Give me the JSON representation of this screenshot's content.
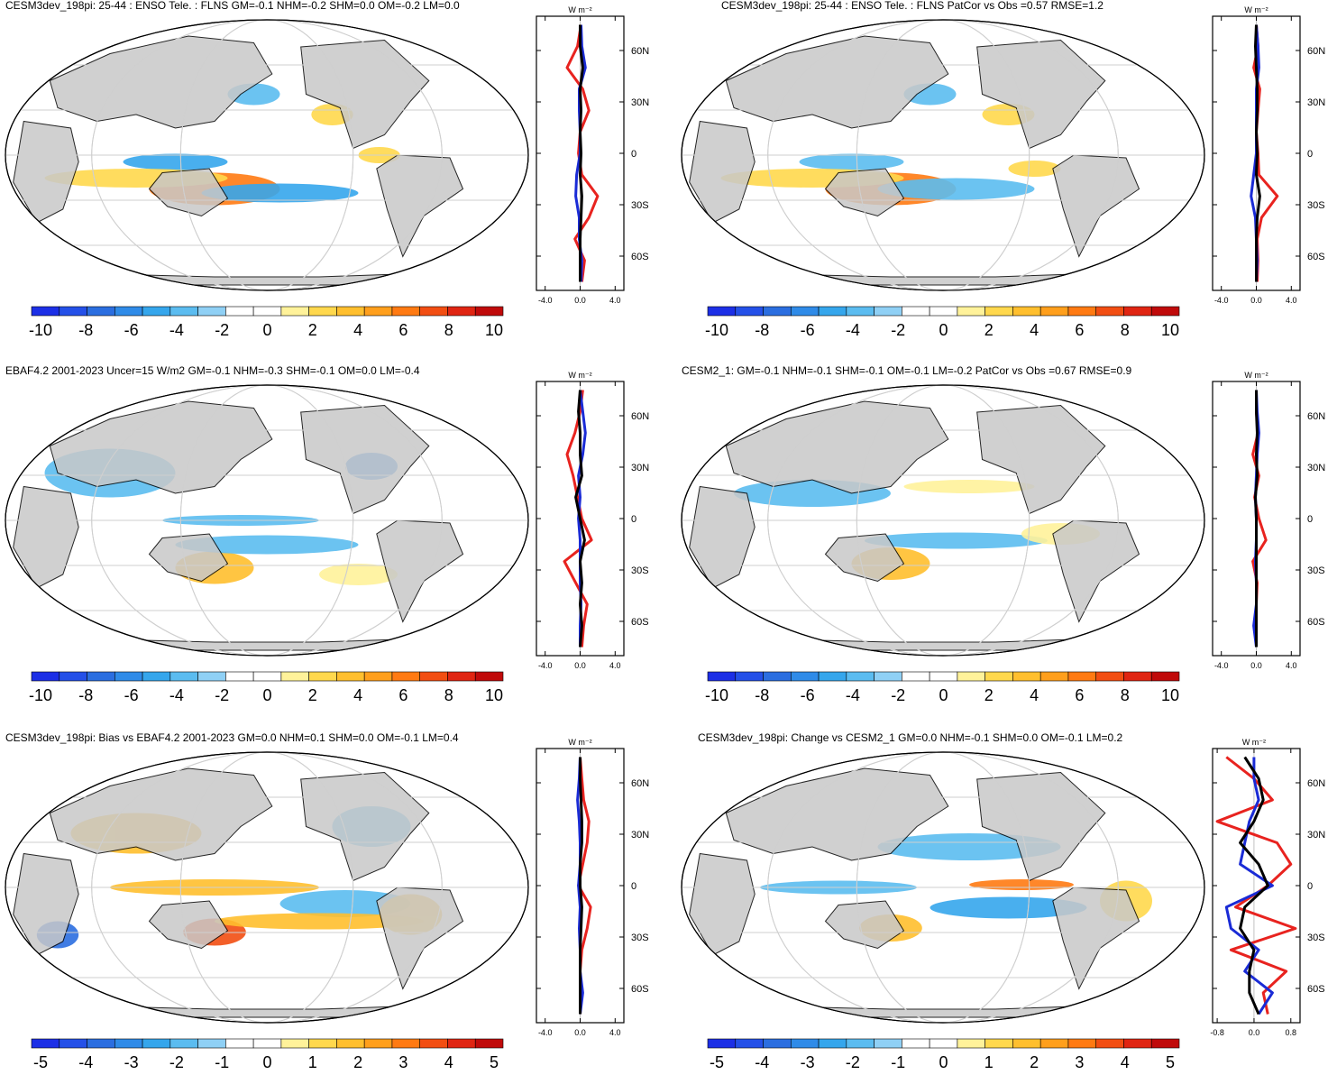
{
  "chart_data": [
    {
      "type": "heatmap",
      "title": "CESM3dev_198pi: 25-44 : ENSO Tele. : FLNS GM=-0.1 NHM=-0.2 SHM=0.0 OM=-0.2 LM=0.0",
      "colorbar_ticks": [
        "-10",
        "-8",
        "-6",
        "-4",
        "-2",
        "0",
        "2",
        "4",
        "6",
        "8",
        "10"
      ],
      "zonal_mean": {
        "units": "W m⁻²",
        "x_ticks": [
          "-4.0",
          "0.0",
          "4.0"
        ],
        "x_range": [
          -5,
          5
        ],
        "y_ticks": [
          "60N",
          "30N",
          "0",
          "30S",
          "60S"
        ],
        "series": [
          {
            "color": "#e8231f",
            "values": [
              0.1,
              -0.3,
              -1.5,
              0.3,
              1.0,
              0.0,
              -0.2,
              0.2,
              2.0,
              1.0,
              -0.6,
              0.5,
              0.2
            ]
          },
          {
            "color": "#1a2bd6",
            "values": [
              0.1,
              0.2,
              0.6,
              -0.1,
              -0.1,
              0.0,
              0.0,
              -0.4,
              -0.5,
              -0.1,
              -0.1,
              0.2,
              0.1
            ]
          },
          {
            "color": "#000000",
            "values": [
              0.0,
              0.0,
              0.3,
              0.0,
              0.1,
              0.0,
              0.1,
              0.0,
              0.2,
              0.1,
              0.0,
              0.0,
              0.0
            ]
          }
        ]
      }
    },
    {
      "type": "heatmap",
      "title": "CESM3dev_198pi: 25-44 : ENSO Tele. : FLNS PatCor vs Obs =0.57 RMSE=1.2",
      "colorbar_ticks": [
        "-10",
        "-8",
        "-6",
        "-4",
        "-2",
        "0",
        "2",
        "4",
        "6",
        "8",
        "10"
      ],
      "zonal_mean": {
        "units": "W m⁻²",
        "x_ticks": [
          "-4.0",
          "0.0",
          "4.0"
        ],
        "x_range": [
          -5,
          5
        ],
        "y_ticks": [
          "60N",
          "30N",
          "0",
          "30S",
          "60S"
        ],
        "series": [
          {
            "color": "#e8231f",
            "values": [
              0.0,
              0.2,
              -0.3,
              0.4,
              0.2,
              0.0,
              0.2,
              0.3,
              2.4,
              0.6,
              0.1,
              0.2,
              0.1
            ]
          },
          {
            "color": "#1a2bd6",
            "values": [
              0.0,
              0.2,
              0.3,
              0.0,
              0.0,
              0.0,
              0.0,
              -0.3,
              -0.6,
              -0.1,
              0.0,
              0.1,
              0.0
            ]
          },
          {
            "color": "#000000",
            "values": [
              0.0,
              -0.1,
              0.0,
              0.1,
              0.1,
              0.0,
              0.1,
              0.0,
              0.4,
              0.1,
              0.0,
              0.0,
              0.0
            ]
          }
        ]
      }
    },
    {
      "type": "heatmap",
      "title": "EBAF4.2 2001-2023 Uncer=15 W/m2 GM=-0.1 NHM=-0.3 SHM=-0.1 OM=0.0 LM=-0.4",
      "colorbar_ticks": [
        "-10",
        "-8",
        "-6",
        "-4",
        "-2",
        "0",
        "2",
        "4",
        "6",
        "8",
        "10"
      ],
      "zonal_mean": {
        "units": "W m⁻²",
        "x_ticks": [
          "-4.0",
          "0.0",
          "4.0"
        ],
        "x_range": [
          -5,
          5
        ],
        "y_ticks": [
          "60N",
          "30N",
          "0",
          "30S",
          "60S"
        ],
        "series": [
          {
            "color": "#e8231f",
            "values": [
              0.3,
              0.0,
              -0.6,
              -1.5,
              -0.8,
              -0.3,
              0.2,
              1.3,
              -1.8,
              -0.5,
              0.8,
              0.4,
              0.2
            ]
          },
          {
            "color": "#1a2bd6",
            "values": [
              0.0,
              0.3,
              0.6,
              0.3,
              -0.2,
              0.0,
              -0.2,
              0.0,
              0.0,
              0.0,
              0.1,
              0.0,
              0.0
            ]
          },
          {
            "color": "#000000",
            "values": [
              0.0,
              -0.2,
              0.0,
              0.0,
              0.2,
              -0.5,
              0.0,
              0.5,
              0.0,
              0.2,
              0.0,
              0.2,
              0.0
            ]
          }
        ]
      }
    },
    {
      "type": "heatmap",
      "title": "CESM2_1: GM=-0.1 NHM=-0.1 SHM=-0.1 OM=-0.1 LM=-0.2 PatCor vs Obs =0.67 RMSE=0.9",
      "colorbar_ticks": [
        "-10",
        "-8",
        "-6",
        "-4",
        "-2",
        "0",
        "2",
        "4",
        "6",
        "8",
        "10"
      ],
      "zonal_mean": {
        "units": "W m⁻²",
        "x_ticks": [
          "-4.0",
          "0.0",
          "4.0"
        ],
        "x_range": [
          -5,
          5
        ],
        "y_ticks": [
          "60N",
          "30N",
          "0",
          "30S",
          "60S"
        ],
        "series": [
          {
            "color": "#e8231f",
            "values": [
              0.0,
              0.0,
              0.2,
              -0.4,
              0.3,
              -0.2,
              0.3,
              1.1,
              -0.4,
              0.1,
              0.0,
              0.0,
              0.0
            ]
          },
          {
            "color": "#1a2bd6",
            "values": [
              0.0,
              0.1,
              0.3,
              0.1,
              0.0,
              -0.1,
              0.0,
              0.0,
              -0.1,
              0.0,
              0.0,
              -0.3,
              0.0
            ]
          },
          {
            "color": "#000000",
            "values": [
              0.0,
              0.0,
              0.1,
              0.0,
              0.1,
              -0.1,
              0.0,
              0.0,
              0.0,
              0.0,
              0.0,
              0.0,
              0.0
            ]
          }
        ]
      }
    },
    {
      "type": "heatmap",
      "title": "CESM3dev_198pi: Bias vs EBAF4.2 2001-2023 GM=0.0 NHM=0.1 SHM=0.0 OM=-0.1 LM=0.4",
      "colorbar_ticks": [
        "-5",
        "-4",
        "-3",
        "-2",
        "-1",
        "0",
        "1",
        "2",
        "3",
        "4",
        "5"
      ],
      "zonal_mean": {
        "units": "W m⁻²",
        "x_ticks": [
          "-4.0",
          "0.0",
          "4.0"
        ],
        "x_range": [
          -5,
          5
        ],
        "y_ticks": [
          "60N",
          "30N",
          "0",
          "30S",
          "60S"
        ],
        "series": [
          {
            "color": "#e8231f",
            "values": [
              0.0,
              0.2,
              0.4,
              1.0,
              0.8,
              0.3,
              -0.2,
              1.2,
              0.8,
              0.2,
              0.0,
              0.1,
              0.0
            ]
          },
          {
            "color": "#1a2bd6",
            "values": [
              0.0,
              -0.1,
              -0.3,
              -0.1,
              0.0,
              0.0,
              -0.2,
              0.0,
              -0.1,
              0.0,
              0.0,
              0.3,
              0.0
            ]
          },
          {
            "color": "#000000",
            "values": [
              0.0,
              0.0,
              0.1,
              0.2,
              0.2,
              0.0,
              0.0,
              0.2,
              0.1,
              0.0,
              0.0,
              0.0,
              0.0
            ]
          }
        ]
      }
    },
    {
      "type": "heatmap",
      "title": "CESM3dev_198pi: Change vs CESM2_1 GM=0.0 NHM=-0.1 SHM=0.0 OM=-0.1 LM=0.2",
      "colorbar_ticks": [
        "-5",
        "-4",
        "-3",
        "-2",
        "-1",
        "0",
        "1",
        "2",
        "3",
        "4",
        "5"
      ],
      "zonal_mean": {
        "units": "W m⁻²",
        "x_ticks": [
          "-0.8",
          "0.0",
          "0.8"
        ],
        "x_range": [
          -0.9,
          1.0
        ],
        "y_ticks": [
          "60N",
          "30N",
          "0",
          "30S",
          "60S"
        ],
        "series": [
          {
            "color": "#e8231f",
            "values": [
              -0.6,
              0.0,
              0.4,
              -0.8,
              0.5,
              0.8,
              0.3,
              -0.4,
              0.9,
              -0.5,
              0.7,
              0.2,
              0.3
            ]
          },
          {
            "color": "#1a2bd6",
            "values": [
              0.0,
              0.0,
              0.1,
              -0.1,
              -0.2,
              -0.3,
              0.4,
              -0.6,
              -0.5,
              0.1,
              -0.2,
              0.4,
              0.1
            ]
          },
          {
            "color": "#000000",
            "values": [
              -0.2,
              0.1,
              0.2,
              0.0,
              -0.3,
              0.1,
              0.3,
              -0.2,
              -0.3,
              0.0,
              -0.1,
              -0.1,
              0.1
            ]
          }
        ]
      }
    }
  ]
}
